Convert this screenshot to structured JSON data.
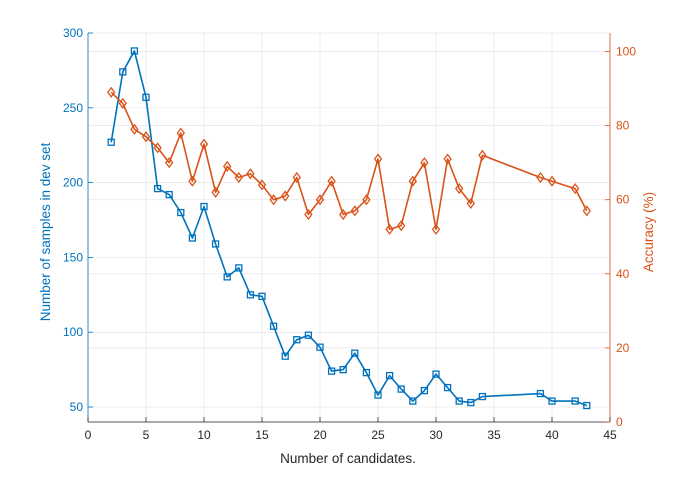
{
  "chart_data": {
    "type": "line",
    "title": "",
    "xlabel": "Number of candidates.",
    "ylabel_left": "Number of samples in dev set",
    "ylabel_right": "Accuracy (%)",
    "xlim": [
      0,
      45
    ],
    "ylim_left": [
      40,
      300
    ],
    "ylim_right": [
      0,
      105
    ],
    "x_ticks": [
      0,
      5,
      10,
      15,
      20,
      25,
      30,
      35,
      40,
      45
    ],
    "y_left_ticks": [
      50,
      100,
      150,
      200,
      250,
      300
    ],
    "y_right_ticks": [
      0,
      20,
      40,
      60,
      80,
      100
    ],
    "grid": true,
    "colors": {
      "left": "#0072bd",
      "right": "#d95319",
      "axis": "#262626",
      "grid": "#e6e6e6"
    },
    "series": [
      {
        "axis": "left",
        "marker": "square",
        "x": [
          2,
          3,
          4,
          5,
          6,
          7,
          8,
          9,
          10,
          11,
          12,
          13,
          14,
          15,
          16,
          17,
          18,
          19,
          20,
          21,
          22,
          23,
          24,
          25,
          26,
          27,
          28,
          29,
          30,
          31,
          32,
          33,
          34,
          39,
          40,
          42,
          43
        ],
        "values": [
          227,
          274,
          288,
          257,
          196,
          192,
          180,
          163,
          184,
          159,
          137,
          143,
          125,
          124,
          104,
          84,
          95,
          98,
          90,
          74,
          75,
          86,
          73,
          58,
          71,
          62,
          54,
          61,
          72,
          63,
          54,
          53,
          57,
          59,
          54,
          54,
          51
        ]
      },
      {
        "axis": "right",
        "marker": "diamond",
        "x": [
          2,
          3,
          4,
          5,
          6,
          7,
          8,
          9,
          10,
          11,
          12,
          13,
          14,
          15,
          16,
          17,
          18,
          19,
          20,
          21,
          22,
          23,
          24,
          25,
          26,
          27,
          28,
          29,
          30,
          31,
          32,
          33,
          34,
          39,
          40,
          42,
          43
        ],
        "values": [
          89,
          86,
          79,
          77,
          74,
          70,
          78,
          65,
          75,
          62,
          69,
          66,
          67,
          64,
          60,
          61,
          66,
          56,
          60,
          65,
          56,
          57,
          60,
          71,
          52,
          53,
          65,
          70,
          52,
          71,
          63,
          59,
          72,
          66,
          65,
          63,
          57
        ]
      }
    ]
  }
}
